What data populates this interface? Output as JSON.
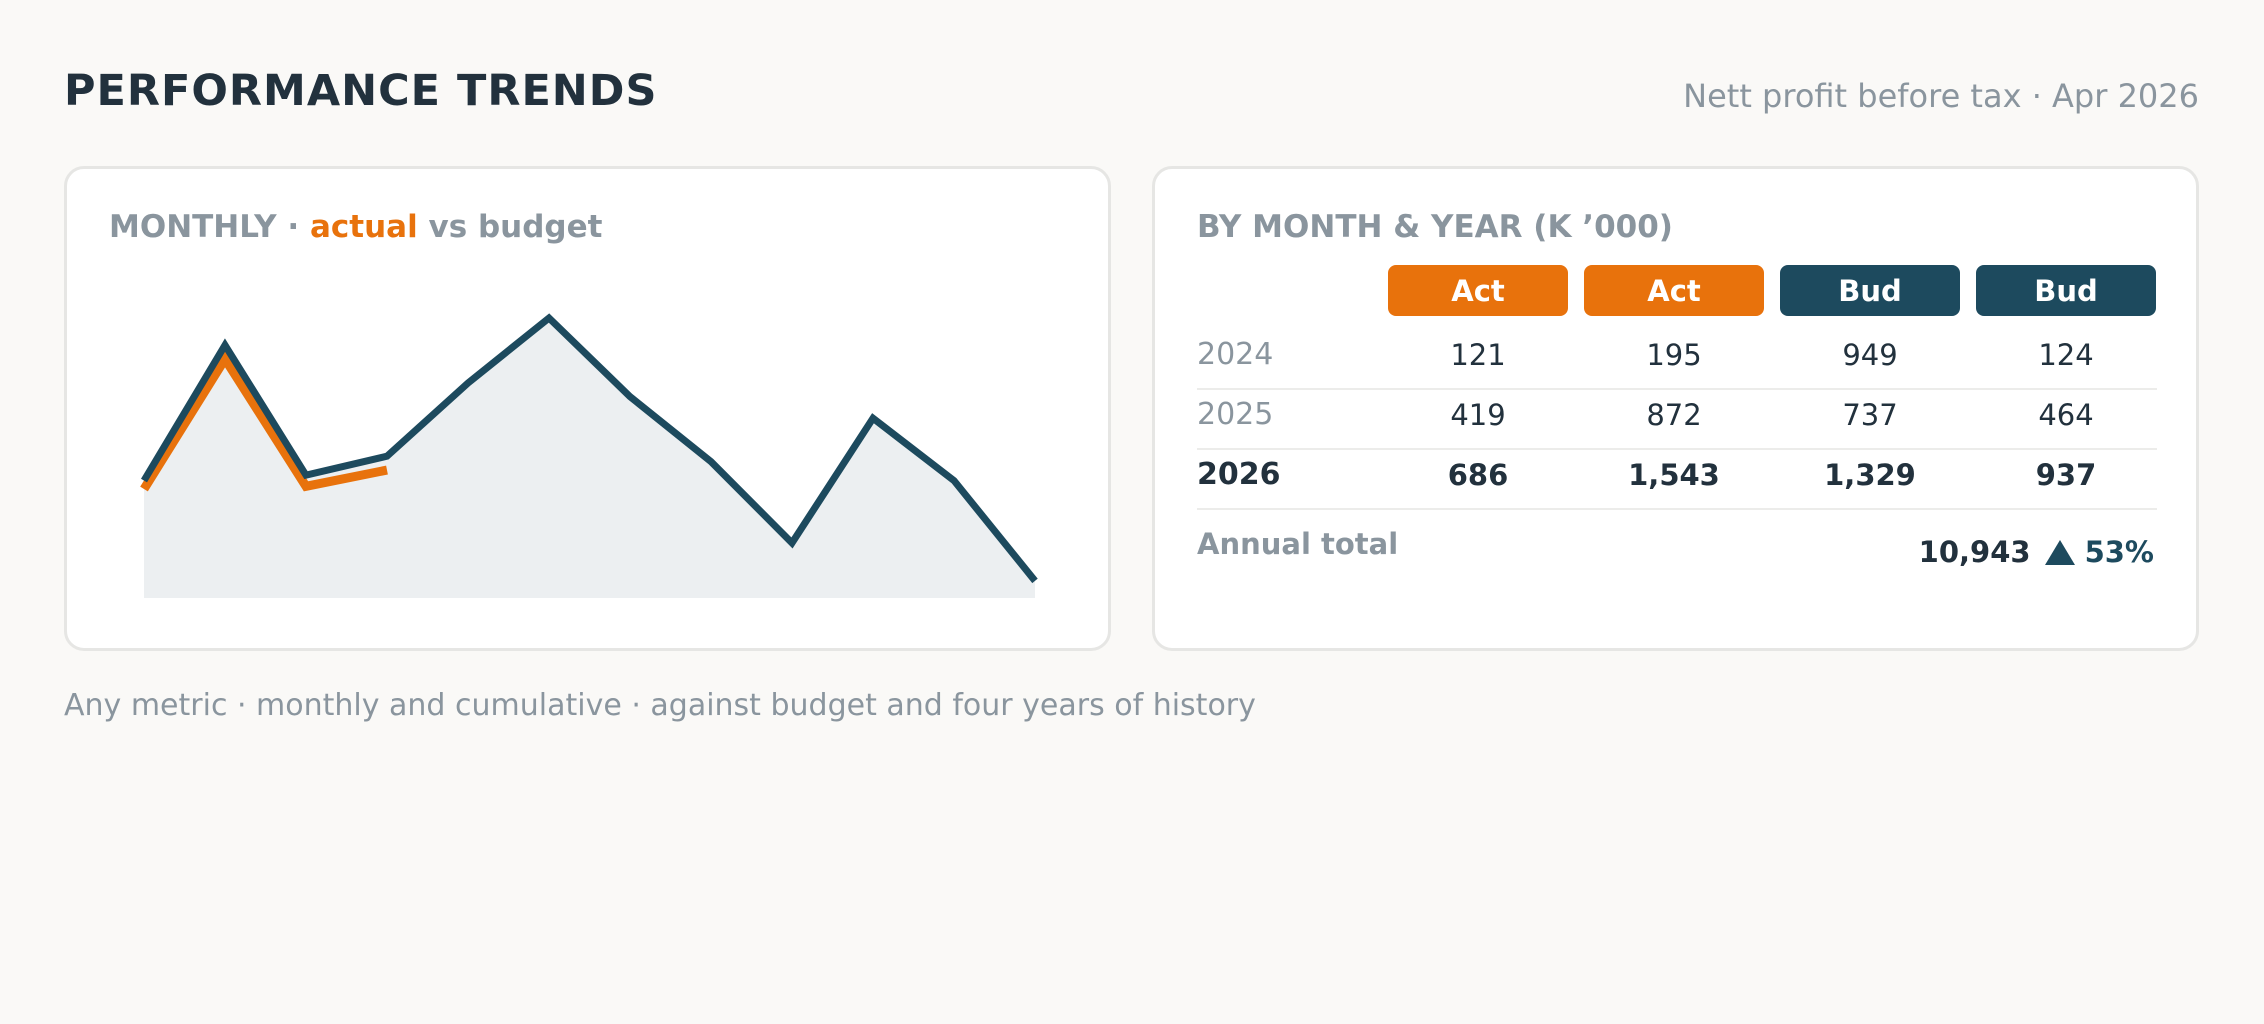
{
  "header": {
    "title": "PERFORMANCE TRENDS",
    "subtitle": "Nett profit before tax · Apr 2026"
  },
  "colors": {
    "actual": "#e8720c",
    "budget": "#1d4a5e",
    "area": "#eceff1"
  },
  "monthly_card": {
    "heading_prefix": "MONTHLY · ",
    "heading_accent": "actual",
    "heading_suffix": " vs budget"
  },
  "chart_data": {
    "type": "line",
    "title": "",
    "xlabel": "",
    "ylabel": "",
    "x": [
      1,
      2,
      3,
      4,
      5,
      6,
      7,
      8,
      9,
      10,
      11,
      12
    ],
    "ylim": [
      0,
      100
    ],
    "grid": false,
    "legend": "none",
    "series": [
      {
        "values": [
          38,
          86,
          39,
          45,
          null,
          null,
          null,
          null,
          null,
          null,
          null,
          null
        ]
      },
      {
        "values": [
          40,
          90,
          42,
          49,
          76,
          100,
          71,
          47,
          17,
          63,
          40,
          3
        ]
      }
    ]
  },
  "year_table": {
    "heading": "BY MONTH & YEAR (K ’000)",
    "columns": [
      {
        "label": "Act",
        "kind": "actual"
      },
      {
        "label": "Act",
        "kind": "actual"
      },
      {
        "label": "Bud",
        "kind": "budget"
      },
      {
        "label": "Bud",
        "kind": "budget"
      }
    ],
    "rows": [
      {
        "year": "2024",
        "values": [
          "121",
          "195",
          "949",
          "124"
        ]
      },
      {
        "year": "2025",
        "values": [
          "419",
          "872",
          "737",
          "464"
        ]
      },
      {
        "year": "2026",
        "values": [
          "686",
          "1,543",
          "1,329",
          "937"
        ],
        "bold": true
      }
    ],
    "total_label": "Annual total",
    "total_value": "10,943",
    "total_icon": "triangle-up-icon",
    "total_change": "53%"
  },
  "footnote": "Any metric · monthly and cumulative · against budget and four years of history"
}
